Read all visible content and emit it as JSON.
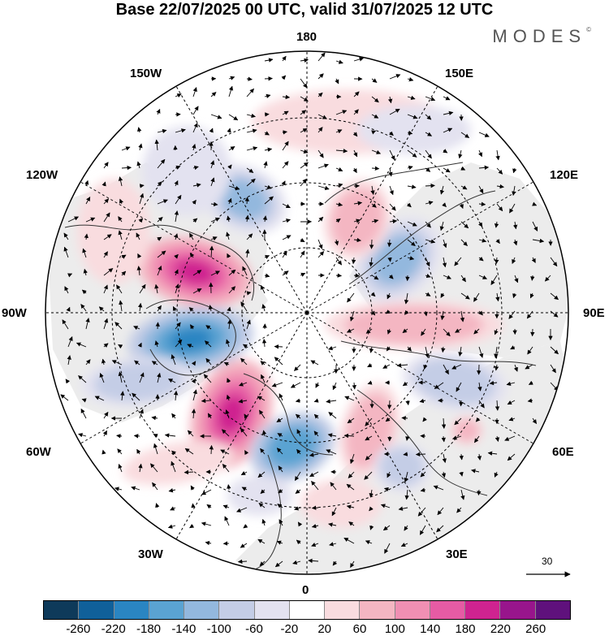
{
  "title": "Base 22/07/2025 00 UTC, valid 31/07/2025 12 UTC",
  "brand": {
    "text": "MODES",
    "mark": "©"
  },
  "longitude_labels": {
    "top": "180",
    "bottom": "0",
    "left": "90W",
    "right": "90E",
    "upper_left": "150W",
    "upper_right": "150E",
    "mid_left_upper": "120W",
    "mid_right_upper": "120E",
    "mid_left_lower": "60W",
    "mid_right_lower": "60E",
    "lower_left": "30W",
    "lower_right": "30E"
  },
  "reference_vector": {
    "value": "30"
  },
  "legend": {
    "colors": [
      "#0e3a5a",
      "#10609a",
      "#2a85c2",
      "#5aa3d2",
      "#93b8de",
      "#c4cde6",
      "#e3e2f0",
      "#ffffff",
      "#f9dcdf",
      "#f4b6c2",
      "#f08fb3",
      "#e65ba4",
      "#cf2390",
      "#98158c",
      "#5f117c"
    ],
    "ticks": [
      "-260",
      "-220",
      "-180",
      "-140",
      "-100",
      "-60",
      "-20",
      "20",
      "60",
      "100",
      "140",
      "180",
      "220",
      "260"
    ]
  },
  "chart_data": {
    "type": "polar-stereographic map",
    "projection": "north polar",
    "field": "anomaly (shaded)",
    "vectors": "wind anomaly arrows",
    "anomaly_centers": [
      {
        "region": "Gulf of Alaska / western Canada",
        "sign": "positive",
        "peak": 180
      },
      {
        "region": "Canadian Arctic / Hudson Bay",
        "sign": "negative",
        "peak": -180
      },
      {
        "region": "Western North Atlantic",
        "sign": "positive",
        "peak": 180
      },
      {
        "region": "Northwest Europe",
        "sign": "negative",
        "peak": -140
      },
      {
        "region": "Central Siberia",
        "sign": "negative",
        "peak": -100
      },
      {
        "region": "Caspian region",
        "sign": "negative",
        "peak": -60
      },
      {
        "region": "North Pacific",
        "sign": "positive",
        "peak": 60
      },
      {
        "region": "Central Asia",
        "sign": "positive",
        "peak": 60
      }
    ]
  }
}
